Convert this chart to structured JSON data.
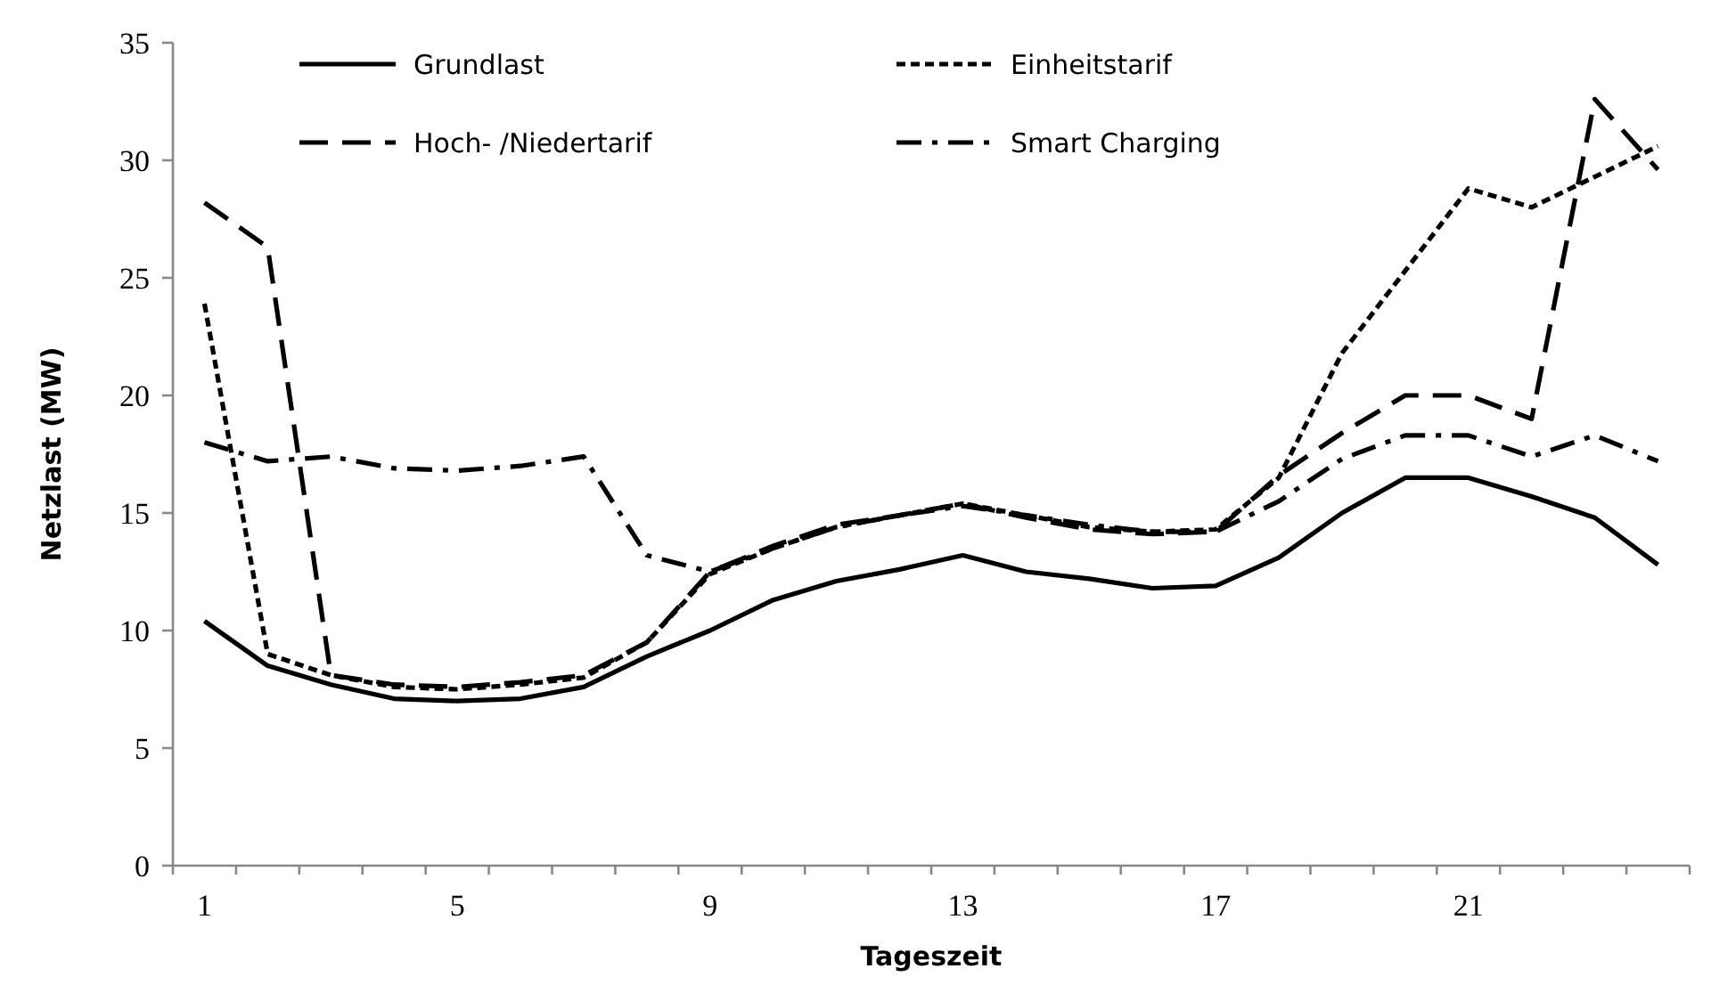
{
  "chart_data": {
    "type": "line",
    "xlabel": "Tageszeit",
    "ylabel": "Netzlast (MW)",
    "categories": [
      "1",
      null,
      null,
      null,
      "5",
      null,
      null,
      null,
      "9",
      null,
      null,
      null,
      "13",
      null,
      null,
      null,
      "17",
      null,
      null,
      null,
      "21",
      null,
      null,
      null
    ],
    "ylim": [
      0,
      35
    ],
    "yticks": [
      0,
      5,
      10,
      15,
      20,
      25,
      30,
      35
    ],
    "grid": false,
    "legend": "top",
    "marker": "none",
    "series": [
      {
        "name": "Grundlast",
        "color": "#000000",
        "line_style": "solid",
        "values": [
          10.4,
          8.5,
          7.7,
          7.1,
          7.0,
          7.1,
          7.6,
          8.9,
          10.0,
          11.3,
          12.1,
          12.6,
          13.2,
          12.5,
          12.2,
          11.8,
          11.9,
          13.1,
          15.0,
          16.5,
          16.5,
          15.7,
          14.8,
          12.8
        ]
      },
      {
        "name": "Einheitstarif",
        "color": "#000000",
        "line_style": "dotted",
        "values": [
          23.9,
          9.0,
          8.1,
          7.6,
          7.5,
          7.7,
          8.0,
          9.5,
          12.4,
          13.5,
          14.4,
          14.9,
          15.4,
          14.9,
          14.4,
          14.2,
          14.3,
          16.5,
          21.8,
          25.3,
          28.8,
          28.0,
          29.3,
          30.6
        ]
      },
      {
        "name": "Hoch- /Niedertarif",
        "color": "#000000",
        "line_style": "dashed",
        "values": [
          28.2,
          26.3,
          8.1,
          7.7,
          7.6,
          7.8,
          8.1,
          9.5,
          12.5,
          13.6,
          14.5,
          14.9,
          15.4,
          14.8,
          14.3,
          14.1,
          14.2,
          16.6,
          18.4,
          20.0,
          20.0,
          19.0,
          32.6,
          29.6
        ]
      },
      {
        "name": "Smart Charging",
        "color": "#000000",
        "line_style": "dashdot",
        "values": [
          18.0,
          17.2,
          17.4,
          16.9,
          16.8,
          17.0,
          17.4,
          13.2,
          12.5,
          13.5,
          14.4,
          14.9,
          15.3,
          14.9,
          14.5,
          14.2,
          14.2,
          15.5,
          17.3,
          18.3,
          18.3,
          17.4,
          18.3,
          17.2
        ]
      }
    ]
  }
}
